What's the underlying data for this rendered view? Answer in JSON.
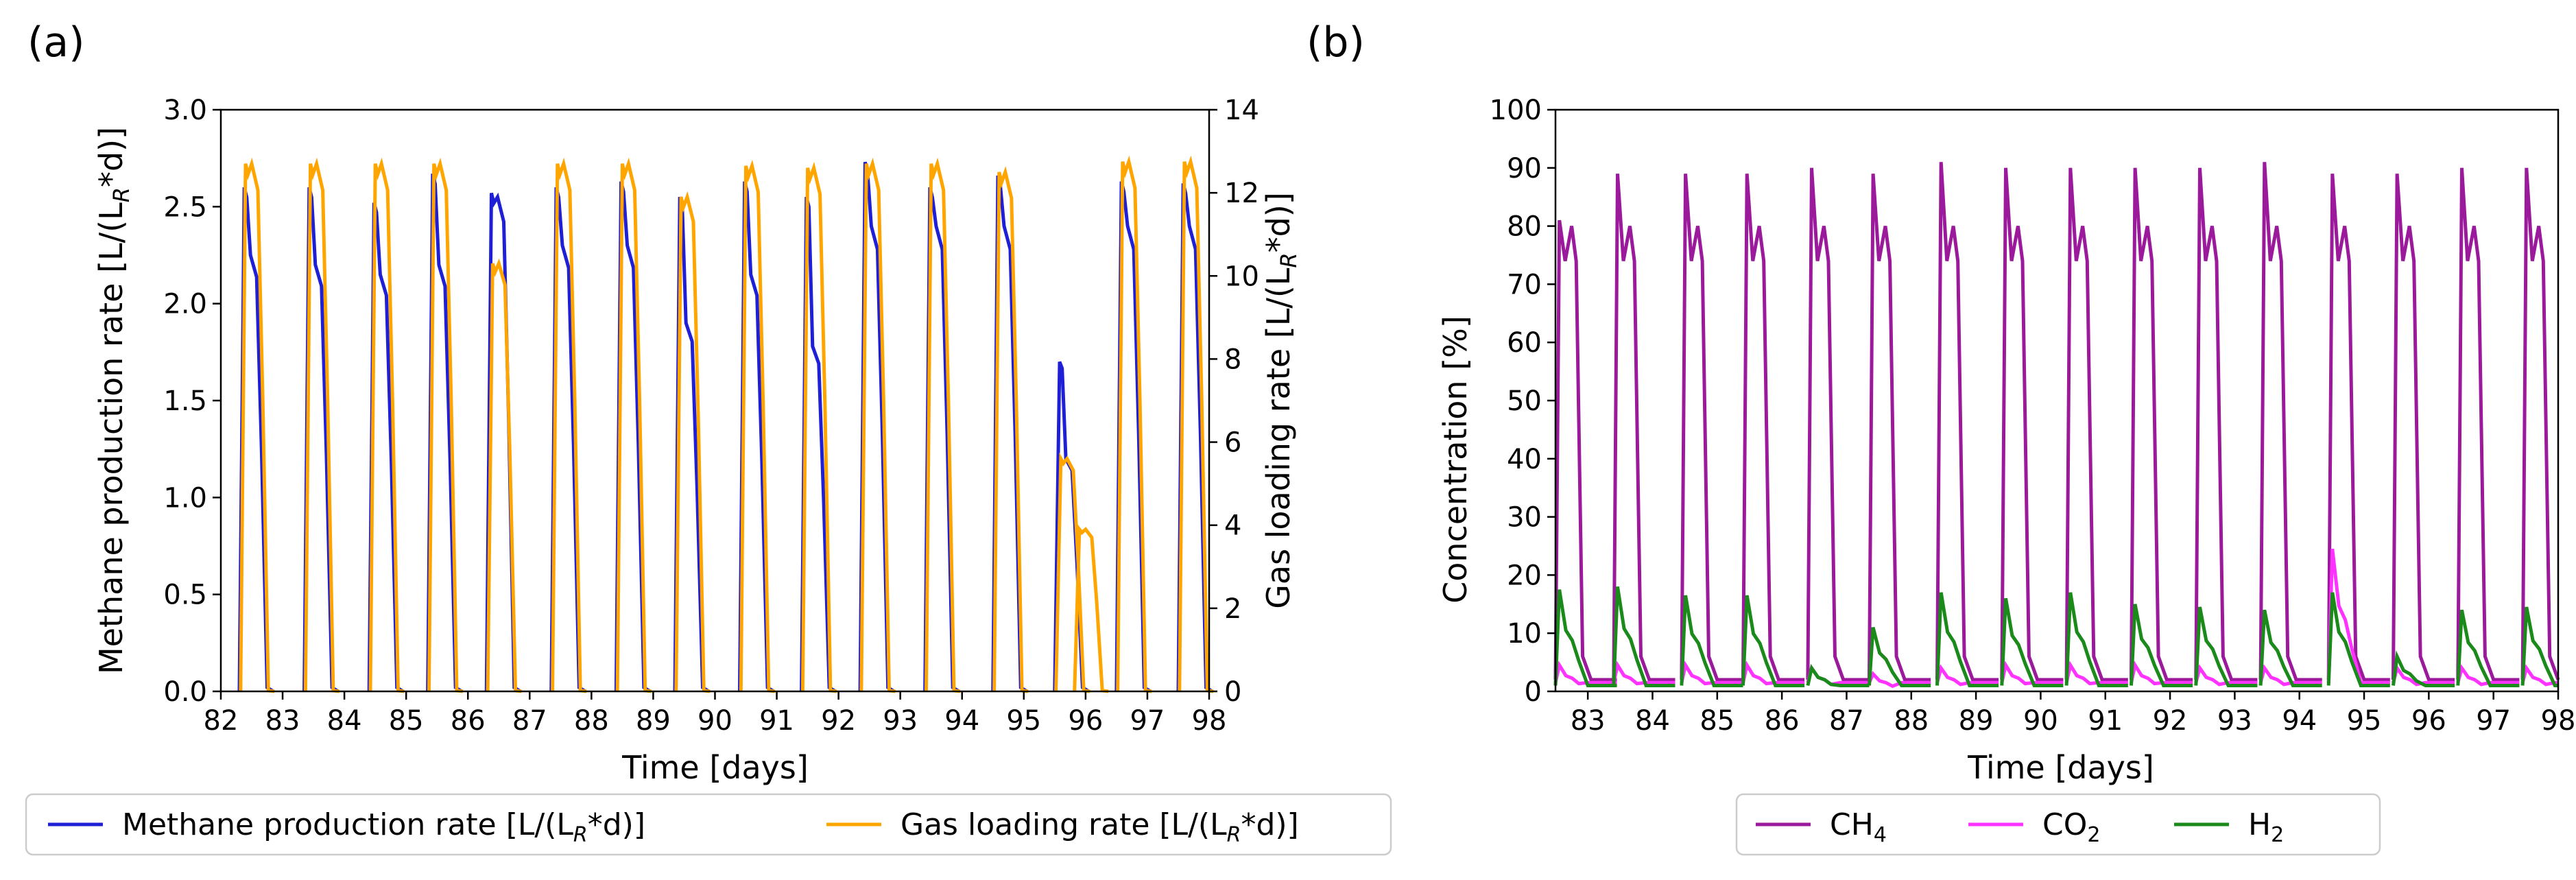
{
  "panels": [
    {
      "id": "a",
      "label": "(a)"
    },
    {
      "id": "b",
      "label": "(b)"
    }
  ],
  "chart_data": [
    {
      "type": "line",
      "panel": "(a)",
      "xlabel": "Time [days]",
      "ylabel_left": "Methane production rate [L/(L_R*d)]",
      "ylabel_right": "Gas loading rate [L/(L_R*d)]",
      "xlim": [
        82,
        98
      ],
      "ylim_left": [
        0,
        3.0
      ],
      "ylim_right": [
        0,
        14
      ],
      "xticks": [
        "82",
        "83",
        "84",
        "85",
        "86",
        "87",
        "88",
        "89",
        "90",
        "91",
        "92",
        "93",
        "94",
        "95",
        "96",
        "97",
        "98"
      ],
      "yticks_left": [
        "0.0",
        "0.5",
        "1.0",
        "1.5",
        "2.0",
        "2.5",
        "3.0"
      ],
      "yticks_right": [
        "0",
        "2",
        "4",
        "6",
        "8",
        "10",
        "12",
        "14"
      ],
      "legend_position": "below",
      "legend": [
        {
          "label": "Methane production rate [L/(L",
          "sub": "R",
          "suffix": "*d)]",
          "color": "#1f1fd6"
        },
        {
          "label": "Gas loading rate [L/(L",
          "sub": "R",
          "suffix": "*d)]",
          "color": "#ffa500"
        }
      ],
      "series": [
        {
          "name": "Methane production rate",
          "axis": "left",
          "color": "#1f1fd6",
          "pulses": [
            {
              "start": 82.3,
              "peak": 2.6,
              "plateau": 2.25
            },
            {
              "start": 83.35,
              "peak": 2.6,
              "plateau": 2.2
            },
            {
              "start": 84.4,
              "peak": 2.52,
              "plateau": 2.15
            },
            {
              "start": 85.35,
              "peak": 2.67,
              "plateau": 2.2
            },
            {
              "start": 86.3,
              "peak": 2.57,
              "plateau": 2.55
            },
            {
              "start": 87.35,
              "peak": 2.6,
              "plateau": 2.3
            },
            {
              "start": 88.4,
              "peak": 2.63,
              "plateau": 2.3
            },
            {
              "start": 89.35,
              "peak": 2.55,
              "plateau": 1.9
            },
            {
              "start": 90.4,
              "peak": 2.63,
              "plateau": 2.15
            },
            {
              "start": 91.4,
              "peak": 2.55,
              "plateau": 1.78
            },
            {
              "start": 92.35,
              "peak": 2.73,
              "plateau": 2.4
            },
            {
              "start": 93.4,
              "peak": 2.6,
              "plateau": 2.4
            },
            {
              "start": 94.5,
              "peak": 2.66,
              "plateau": 2.4
            },
            {
              "start": 95.5,
              "peak": 1.7,
              "plateau": 1.2
            },
            {
              "start": 96.5,
              "peak": 2.63,
              "plateau": 2.4
            },
            {
              "start": 97.5,
              "peak": 2.62,
              "plateau": 2.4
            }
          ]
        },
        {
          "name": "Gas loading rate",
          "axis": "right",
          "color": "#ffa500",
          "pulses": [
            {
              "start": 82.32,
              "peak": 12.7,
              "plateau": 12.7
            },
            {
              "start": 83.37,
              "peak": 12.7,
              "plateau": 12.7
            },
            {
              "start": 84.42,
              "peak": 12.7,
              "plateau": 12.7
            },
            {
              "start": 85.37,
              "peak": 12.7,
              "plateau": 12.7
            },
            {
              "start": 86.32,
              "peak": 10.3,
              "plateau": 10.3
            },
            {
              "start": 87.37,
              "peak": 12.7,
              "plateau": 12.7
            },
            {
              "start": 88.42,
              "peak": 12.7,
              "plateau": 12.7
            },
            {
              "start": 89.37,
              "peak": 11.9,
              "plateau": 11.9
            },
            {
              "start": 90.42,
              "peak": 12.65,
              "plateau": 12.65
            },
            {
              "start": 91.42,
              "peak": 12.6,
              "plateau": 12.6
            },
            {
              "start": 92.37,
              "peak": 12.7,
              "plateau": 12.7
            },
            {
              "start": 93.42,
              "peak": 12.7,
              "plateau": 12.7
            },
            {
              "start": 94.52,
              "peak": 12.5,
              "plateau": 12.5
            },
            {
              "start": 95.52,
              "peak": 5.6,
              "plateau": 5.6
            },
            {
              "start": 95.82,
              "peak": 3.9,
              "plateau": 3.9
            },
            {
              "start": 96.52,
              "peak": 12.75,
              "plateau": 12.75
            },
            {
              "start": 97.52,
              "peak": 12.75,
              "plateau": 12.75
            }
          ]
        }
      ]
    },
    {
      "type": "line",
      "panel": "(b)",
      "xlabel": "Time [days]",
      "ylabel": "Concentration [%]",
      "xlim": [
        82.5,
        98
      ],
      "ylim": [
        0,
        100
      ],
      "xticks": [
        "83",
        "84",
        "85",
        "86",
        "87",
        "88",
        "89",
        "90",
        "91",
        "92",
        "93",
        "94",
        "95",
        "96",
        "97",
        "98"
      ],
      "yticks": [
        "0",
        "10",
        "20",
        "30",
        "40",
        "50",
        "60",
        "70",
        "80",
        "90",
        "100"
      ],
      "legend_position": "below",
      "legend": [
        {
          "label": "CH",
          "sub": "4",
          "color": "#9b1a9b"
        },
        {
          "label": "CO",
          "sub": "2",
          "color": "#ff33ff"
        },
        {
          "label": "H",
          "sub": "2",
          "color": "#1a8a1a"
        }
      ],
      "series": [
        {
          "name": "CH4",
          "color": "#9b1a9b",
          "base": 2,
          "high": 80,
          "pulses": [
            {
              "start": 82.5,
              "peak": 81
            },
            {
              "start": 83.4,
              "peak": 89
            },
            {
              "start": 84.45,
              "peak": 89
            },
            {
              "start": 85.4,
              "peak": 89
            },
            {
              "start": 86.4,
              "peak": 90
            },
            {
              "start": 87.35,
              "peak": 89
            },
            {
              "start": 88.4,
              "peak": 91
            },
            {
              "start": 89.4,
              "peak": 90
            },
            {
              "start": 90.4,
              "peak": 90
            },
            {
              "start": 91.4,
              "peak": 90
            },
            {
              "start": 92.4,
              "peak": 90
            },
            {
              "start": 93.4,
              "peak": 91
            },
            {
              "start": 94.45,
              "peak": 89
            },
            {
              "start": 95.45,
              "peak": 89
            },
            {
              "start": 96.45,
              "peak": 90
            },
            {
              "start": 97.45,
              "peak": 90
            }
          ]
        },
        {
          "name": "CO2",
          "color": "#ff33ff",
          "base": 1.5,
          "pulses": [
            {
              "start": 82.5,
              "peak": 4.5
            },
            {
              "start": 83.4,
              "peak": 4.5
            },
            {
              "start": 84.45,
              "peak": 4.5
            },
            {
              "start": 85.4,
              "peak": 4.5
            },
            {
              "start": 86.4,
              "peak": 4
            },
            {
              "start": 87.35,
              "peak": 3
            },
            {
              "start": 88.4,
              "peak": 4
            },
            {
              "start": 89.4,
              "peak": 4.5
            },
            {
              "start": 90.4,
              "peak": 4.5
            },
            {
              "start": 91.4,
              "peak": 4.5
            },
            {
              "start": 92.4,
              "peak": 4
            },
            {
              "start": 93.4,
              "peak": 4
            },
            {
              "start": 94.45,
              "peak": 24.5
            },
            {
              "start": 95.45,
              "peak": 4
            },
            {
              "start": 96.45,
              "peak": 4
            },
            {
              "start": 97.45,
              "peak": 4
            }
          ]
        },
        {
          "name": "H2",
          "color": "#1a8a1a",
          "base": 1,
          "pulses": [
            {
              "start": 82.5,
              "peak": 17.5
            },
            {
              "start": 83.4,
              "peak": 18
            },
            {
              "start": 84.45,
              "peak": 16.5
            },
            {
              "start": 85.4,
              "peak": 16.5
            },
            {
              "start": 86.4,
              "peak": 4
            },
            {
              "start": 87.35,
              "peak": 11
            },
            {
              "start": 88.4,
              "peak": 17
            },
            {
              "start": 89.4,
              "peak": 16
            },
            {
              "start": 90.4,
              "peak": 17
            },
            {
              "start": 91.4,
              "peak": 15
            },
            {
              "start": 92.4,
              "peak": 14.5
            },
            {
              "start": 93.4,
              "peak": 14
            },
            {
              "start": 94.45,
              "peak": 17
            },
            {
              "start": 95.45,
              "peak": 6
            },
            {
              "start": 96.45,
              "peak": 14
            },
            {
              "start": 97.45,
              "peak": 14.5
            }
          ]
        }
      ]
    }
  ]
}
